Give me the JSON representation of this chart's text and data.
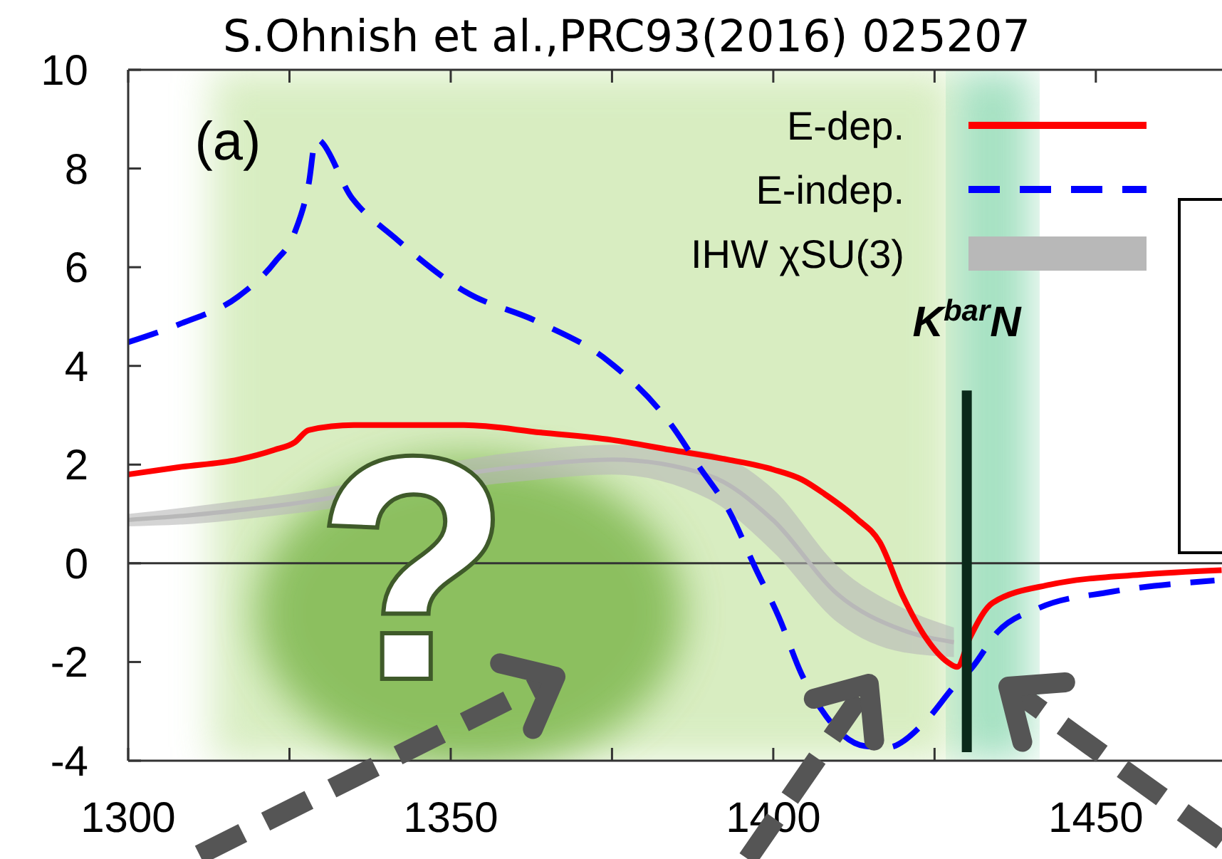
{
  "chart_data": {
    "type": "line",
    "title": "S.Ohnish et al.,PRC93(2016) 025207",
    "xlim": [
      1300,
      1470
    ],
    "xticks": [
      1300,
      {
        "value": 1325,
        "label": null
      },
      1350,
      {
        "value": 1375,
        "label": null
      },
      1400,
      {
        "value": 1425,
        "label": null
      },
      1450
    ],
    "ylim": [
      -4,
      10
    ],
    "yticks": [
      -4,
      -2,
      0,
      2,
      4,
      6,
      8,
      10
    ],
    "grid": false,
    "legend": "top right",
    "series": [
      {
        "name": "E-dep.",
        "color": "#ff0000",
        "line_style": "solid",
        "x": [
          1300,
          1308,
          1317,
          1322.7,
          1325.8,
          1328,
          1335,
          1352,
          1364,
          1375,
          1384,
          1393,
          1400,
          1404.4,
          1408,
          1413,
          1416.5,
          1420,
          1423.6,
          1427,
          1428.5,
          1430.5,
          1434,
          1443,
          1457,
          1469.5
        ],
        "values": [
          1.8,
          1.95,
          2.1,
          2.3,
          2.45,
          2.7,
          2.8,
          2.8,
          2.65,
          2.5,
          2.3,
          2.1,
          1.9,
          1.7,
          1.4,
          0.9,
          0.43,
          -0.64,
          -1.5,
          -2.0,
          -2.1,
          -1.5,
          -0.8,
          -0.43,
          -0.23,
          -0.14
        ]
      },
      {
        "name": "E-indep.",
        "color": "#0000ff",
        "line_style": "dashed",
        "x": [
          1300,
          1308.2,
          1317,
          1322.7,
          1325.8,
          1328,
          1329.1,
          1334.7,
          1341.3,
          1352.3,
          1363.4,
          1374.4,
          1384.5,
          1388.3,
          1393.4,
          1397.1,
          1400.9,
          1404.4,
          1408.2,
          1414.1,
          1417.7,
          1423.6,
          1428,
          1430.9,
          1434.7,
          1441.3,
          1452.3,
          1468.4
        ],
        "values": [
          4.48,
          4.86,
          5.4,
          6.1,
          6.7,
          7.7,
          8.6,
          7.4,
          6.6,
          5.5,
          4.9,
          4.1,
          2.75,
          2.0,
          1.0,
          -0.06,
          -1.1,
          -2.25,
          -3.1,
          -3.7,
          -3.73,
          -3.2,
          -2.5,
          -2.1,
          -1.4,
          -0.9,
          -0.58,
          -0.35
        ]
      },
      {
        "name": "IHW χSU(3)",
        "type": "line",
        "color": "#b8b8b8",
        "x": [
          1300,
          1310,
          1325,
          1360,
          1375,
          1390,
          1400,
          1410,
          1420,
          1428
        ],
        "values": [
          0.88,
          0.98,
          1.2,
          1.95,
          2.1,
          1.78,
          0.87,
          -0.63,
          -1.35,
          -1.6
        ],
        "lower": [
          0.75,
          0.8,
          1.0,
          1.65,
          1.8,
          1.3,
          0.23,
          -1.2,
          -1.8,
          -1.9
        ],
        "upper": [
          1.0,
          1.15,
          1.4,
          2.25,
          2.4,
          2.25,
          1.5,
          -0.06,
          -0.9,
          -1.3
        ]
      }
    ],
    "ref_lines": [
      {
        "axis": "y",
        "value": 0,
        "color": "#333333"
      },
      {
        "axis": "x",
        "value": 1430,
        "label": "K$^{bar}$N",
        "color": "#0a2a1a"
      }
    ],
    "bands": [
      {
        "axis": "x",
        "from": 1313,
        "to": 1428,
        "color": "#c8e6a8"
      },
      {
        "axis": "x",
        "from": 1428,
        "to": 1440,
        "color": "#7fd4a8"
      }
    ],
    "annotations": [
      "(a)",
      "?"
    ]
  }
}
